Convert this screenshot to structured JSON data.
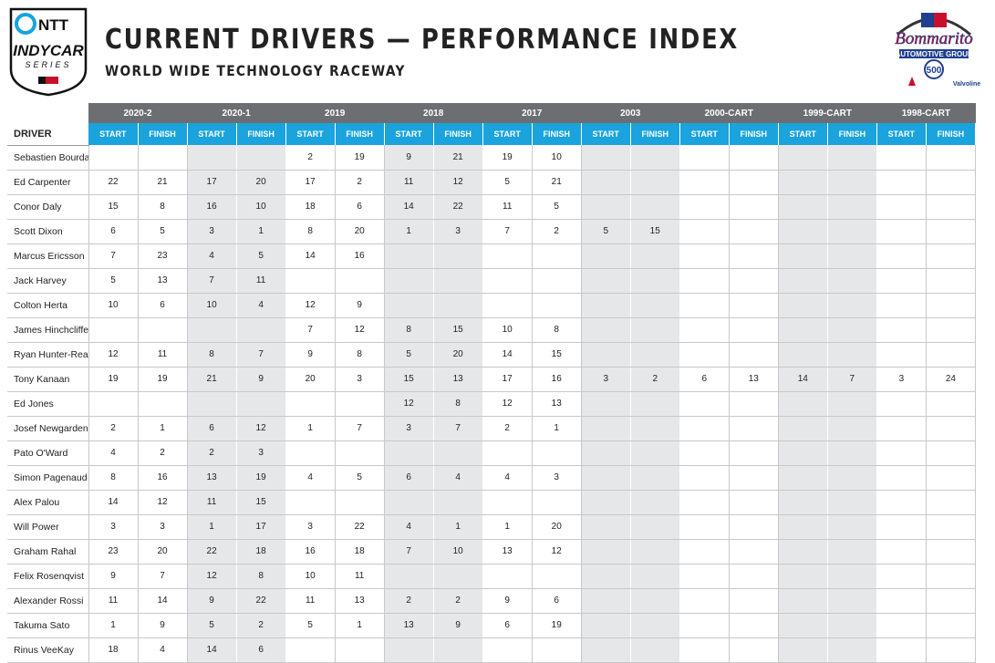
{
  "header": {
    "logo_left": [
      "NTT",
      "INDYCAR",
      "SERIES"
    ],
    "title": "CURRENT DRIVERS — PERFORMANCE INDEX",
    "subtitle": "WORLD WIDE TECHNOLOGY RACEWAY",
    "logo_right": [
      "Bommarito",
      "AUTOMOTIVE GROUP",
      "500",
      "Valvoline"
    ]
  },
  "table": {
    "driver_header": "DRIVER",
    "years": [
      "2020-2",
      "2020-1",
      "2019",
      "2018",
      "2017",
      "2003",
      "2000-CART",
      "1999-CART",
      "1998-CART"
    ],
    "subheaders": [
      "START",
      "FINISH"
    ],
    "rows": [
      {
        "driver": "Sebastien Bourdais",
        "results": [
          null,
          null,
          null,
          null,
          2,
          19,
          9,
          21,
          19,
          10,
          null,
          null,
          null,
          null,
          null,
          null,
          null,
          null
        ]
      },
      {
        "driver": "Ed Carpenter",
        "results": [
          22,
          21,
          17,
          20,
          17,
          2,
          11,
          12,
          5,
          21,
          null,
          null,
          null,
          null,
          null,
          null,
          null,
          null
        ]
      },
      {
        "driver": "Conor Daly",
        "results": [
          15,
          8,
          16,
          10,
          18,
          6,
          14,
          22,
          11,
          5,
          null,
          null,
          null,
          null,
          null,
          null,
          null,
          null
        ]
      },
      {
        "driver": "Scott Dixon",
        "results": [
          6,
          5,
          3,
          1,
          8,
          20,
          1,
          3,
          7,
          2,
          5,
          15,
          null,
          null,
          null,
          null,
          null,
          null
        ]
      },
      {
        "driver": "Marcus Ericsson",
        "results": [
          7,
          23,
          4,
          5,
          14,
          16,
          null,
          null,
          null,
          null,
          null,
          null,
          null,
          null,
          null,
          null,
          null,
          null
        ]
      },
      {
        "driver": "Jack Harvey",
        "results": [
          5,
          13,
          7,
          11,
          null,
          null,
          null,
          null,
          null,
          null,
          null,
          null,
          null,
          null,
          null,
          null,
          null,
          null
        ]
      },
      {
        "driver": "Colton Herta",
        "results": [
          10,
          6,
          10,
          4,
          12,
          9,
          null,
          null,
          null,
          null,
          null,
          null,
          null,
          null,
          null,
          null,
          null,
          null
        ]
      },
      {
        "driver": "James Hinchcliffe",
        "results": [
          null,
          null,
          null,
          null,
          7,
          12,
          8,
          15,
          10,
          8,
          null,
          null,
          null,
          null,
          null,
          null,
          null,
          null
        ]
      },
      {
        "driver": "Ryan Hunter-Reay",
        "results": [
          12,
          11,
          8,
          7,
          9,
          8,
          5,
          20,
          14,
          15,
          null,
          null,
          null,
          null,
          null,
          null,
          null,
          null
        ]
      },
      {
        "driver": "Tony Kanaan",
        "results": [
          19,
          19,
          21,
          9,
          20,
          3,
          15,
          13,
          17,
          16,
          3,
          2,
          6,
          13,
          14,
          7,
          3,
          24
        ]
      },
      {
        "driver": "Ed Jones",
        "results": [
          null,
          null,
          null,
          null,
          null,
          null,
          12,
          8,
          12,
          13,
          null,
          null,
          null,
          null,
          null,
          null,
          null,
          null
        ]
      },
      {
        "driver": "Josef Newgarden",
        "results": [
          2,
          1,
          6,
          12,
          1,
          7,
          3,
          7,
          2,
          1,
          null,
          null,
          null,
          null,
          null,
          null,
          null,
          null
        ]
      },
      {
        "driver": "Pato O'Ward",
        "results": [
          4,
          2,
          2,
          3,
          null,
          null,
          null,
          null,
          null,
          null,
          null,
          null,
          null,
          null,
          null,
          null,
          null,
          null
        ]
      },
      {
        "driver": "Simon Pagenaud",
        "results": [
          8,
          16,
          13,
          19,
          4,
          5,
          6,
          4,
          4,
          3,
          null,
          null,
          null,
          null,
          null,
          null,
          null,
          null
        ]
      },
      {
        "driver": "Alex Palou",
        "results": [
          14,
          12,
          11,
          15,
          null,
          null,
          null,
          null,
          null,
          null,
          null,
          null,
          null,
          null,
          null,
          null,
          null,
          null
        ]
      },
      {
        "driver": "Will Power",
        "results": [
          3,
          3,
          1,
          17,
          3,
          22,
          4,
          1,
          1,
          20,
          null,
          null,
          null,
          null,
          null,
          null,
          null,
          null
        ]
      },
      {
        "driver": "Graham Rahal",
        "results": [
          23,
          20,
          22,
          18,
          16,
          18,
          7,
          10,
          13,
          12,
          null,
          null,
          null,
          null,
          null,
          null,
          null,
          null
        ]
      },
      {
        "driver": "Felix Rosenqvist",
        "results": [
          9,
          7,
          12,
          8,
          10,
          11,
          null,
          null,
          null,
          null,
          null,
          null,
          null,
          null,
          null,
          null,
          null,
          null
        ]
      },
      {
        "driver": "Alexander Rossi",
        "results": [
          11,
          14,
          9,
          22,
          11,
          13,
          2,
          2,
          9,
          6,
          null,
          null,
          null,
          null,
          null,
          null,
          null,
          null
        ]
      },
      {
        "driver": "Takuma Sato",
        "results": [
          1,
          9,
          5,
          2,
          5,
          1,
          13,
          9,
          6,
          19,
          null,
          null,
          null,
          null,
          null,
          null,
          null,
          null
        ]
      },
      {
        "driver": "Rinus VeeKay",
        "results": [
          18,
          4,
          14,
          6,
          null,
          null,
          null,
          null,
          null,
          null,
          null,
          null,
          null,
          null,
          null,
          null,
          null,
          null
        ]
      }
    ]
  }
}
